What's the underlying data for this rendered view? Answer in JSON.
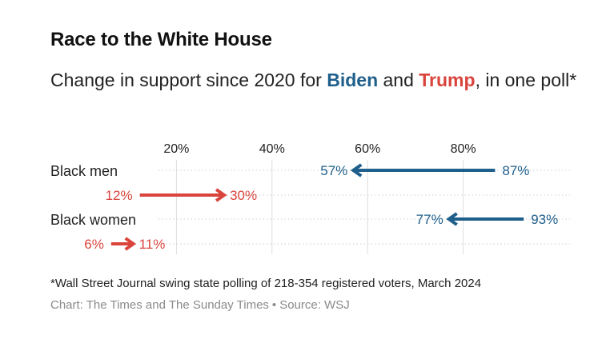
{
  "header": {
    "title": "Race to the White House",
    "subtitle_prefix": "Change in support since 2020 for ",
    "subtitle_biden": "Biden",
    "subtitle_and": " and ",
    "subtitle_trump": "Trump",
    "subtitle_suffix": ", in one poll*"
  },
  "footer": {
    "footnote": "*Wall Street Journal swing state polling of 218-354 registered voters, March 2024",
    "credit": "Chart: The Times and The Sunday Times",
    "separator": "•",
    "source": "Source: WSJ"
  },
  "colors": {
    "biden": "#1f5f8b",
    "trump": "#d9453d",
    "gridline": "#dddddd",
    "text": "#222222",
    "muted": "#8a8a8a"
  },
  "chart_data": {
    "type": "arrow-range",
    "unit": "%",
    "xlim": [
      0,
      100
    ],
    "x_ticks": [
      20,
      40,
      60,
      80
    ],
    "x_tick_labels": [
      "20%",
      "40%",
      "60%",
      "80%"
    ],
    "grid": true,
    "categories": [
      "Black men",
      "Black women"
    ],
    "series": [
      {
        "name": "Biden",
        "color": "#1f5f8b",
        "from": [
          87,
          93
        ],
        "to": [
          57,
          77
        ],
        "from_labels": [
          "87%",
          "93%"
        ],
        "to_labels": [
          "57%",
          "77%"
        ]
      },
      {
        "name": "Trump",
        "color": "#d9453d",
        "from": [
          12,
          6
        ],
        "to": [
          30,
          11
        ],
        "from_labels": [
          "12%",
          "6%"
        ],
        "to_labels": [
          "30%",
          "11%"
        ]
      }
    ]
  }
}
